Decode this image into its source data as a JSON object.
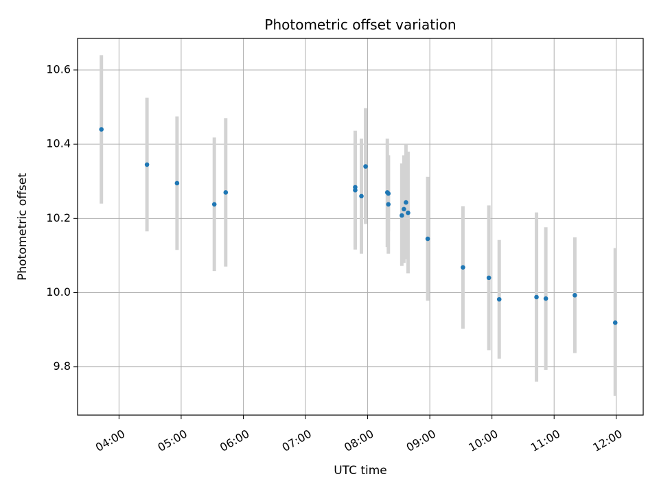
{
  "chart_data": {
    "type": "scatter",
    "title": "Photometric offset variation",
    "xlabel": "UTC time",
    "ylabel": "Photometric offset",
    "x_ticks": [
      "04:00",
      "05:00",
      "06:00",
      "07:00",
      "08:00",
      "09:00",
      "10:00",
      "11:00",
      "12:00"
    ],
    "y_ticks": [
      "9.8",
      "10.0",
      "10.2",
      "10.4",
      "10.6"
    ],
    "xlim": [
      "03:20",
      "12:26"
    ],
    "ylim": [
      9.67,
      10.685
    ],
    "grid": true,
    "points": [
      {
        "x": "03:43",
        "y": 10.44,
        "err_low": 10.24,
        "err_high": 10.64
      },
      {
        "x": "04:27",
        "y": 10.345,
        "err_low": 10.165,
        "err_high": 10.525
      },
      {
        "x": "04:56",
        "y": 10.295,
        "err_low": 10.115,
        "err_high": 10.475
      },
      {
        "x": "05:32",
        "y": 10.238,
        "err_low": 10.058,
        "err_high": 10.418
      },
      {
        "x": "05:43",
        "y": 10.27,
        "err_low": 10.07,
        "err_high": 10.47
      },
      {
        "x": "07:48",
        "y": 10.284,
        "err_low": 10.124,
        "err_high": 10.436
      },
      {
        "x": "07:48",
        "y": 10.276,
        "err_low": 10.116,
        "err_high": 10.428
      },
      {
        "x": "07:54",
        "y": 10.26,
        "err_low": 10.105,
        "err_high": 10.415
      },
      {
        "x": "07:58",
        "y": 10.34,
        "err_low": 10.185,
        "err_high": 10.497
      },
      {
        "x": "08:19",
        "y": 10.27,
        "err_low": 10.123,
        "err_high": 10.415
      },
      {
        "x": "08:20",
        "y": 10.267,
        "err_low": 10.165,
        "err_high": 10.37
      },
      {
        "x": "08:20",
        "y": 10.238,
        "err_low": 10.105,
        "err_high": 10.37
      },
      {
        "x": "08:33",
        "y": 10.208,
        "err_low": 10.072,
        "err_high": 10.348
      },
      {
        "x": "08:35",
        "y": 10.225,
        "err_low": 10.08,
        "err_high": 10.37
      },
      {
        "x": "08:37",
        "y": 10.243,
        "err_low": 10.09,
        "err_high": 10.4
      },
      {
        "x": "08:39",
        "y": 10.215,
        "err_low": 10.052,
        "err_high": 10.38
      },
      {
        "x": "08:58",
        "y": 10.145,
        "err_low": 9.978,
        "err_high": 10.312
      },
      {
        "x": "09:32",
        "y": 10.068,
        "err_low": 9.903,
        "err_high": 10.233
      },
      {
        "x": "09:57",
        "y": 10.04,
        "err_low": 9.845,
        "err_high": 10.235
      },
      {
        "x": "10:07",
        "y": 9.982,
        "err_low": 9.822,
        "err_high": 10.142
      },
      {
        "x": "10:43",
        "y": 9.988,
        "err_low": 9.76,
        "err_high": 10.216
      },
      {
        "x": "10:52",
        "y": 9.984,
        "err_low": 9.792,
        "err_high": 10.176
      },
      {
        "x": "11:20",
        "y": 9.993,
        "err_low": 9.837,
        "err_high": 10.149
      },
      {
        "x": "11:59",
        "y": 9.919,
        "err_low": 9.722,
        "err_high": 10.12
      }
    ],
    "colors": {
      "marker": "#1f77b4",
      "errorbar": "#d3d3d3",
      "grid": "#b0b0b0",
      "axes": "#000000"
    }
  }
}
